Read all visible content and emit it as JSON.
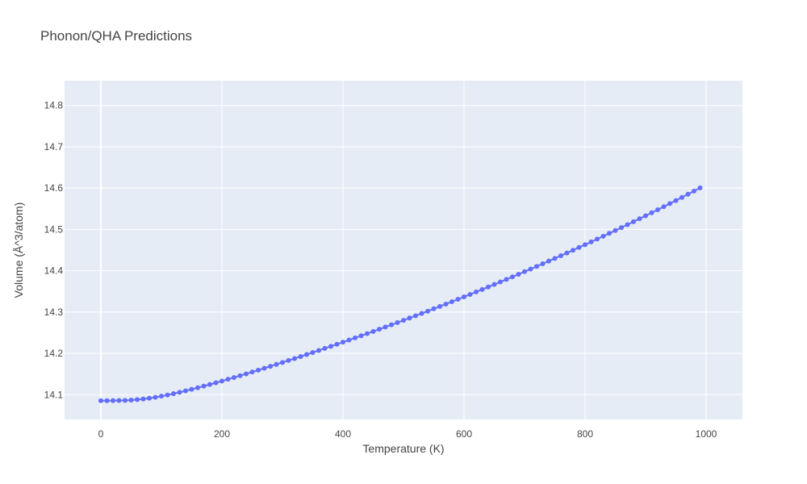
{
  "chart_data": {
    "type": "line",
    "title": "Phonon/QHA Predictions",
    "xlabel": "Temperature (K)",
    "ylabel": "Volume (Å^3/atom)",
    "xlim": [
      -60,
      1060
    ],
    "ylim": [
      14.04,
      14.86
    ],
    "x_ticks": [
      0,
      200,
      400,
      600,
      800,
      1000
    ],
    "y_ticks": [
      14.1,
      14.2,
      14.3,
      14.4,
      14.5,
      14.6,
      14.7,
      14.8
    ],
    "grid": true,
    "legend": "none",
    "colors": {
      "series": "#636efa",
      "plot_bg": "#e5ecf6",
      "grid": "#ffffff",
      "text": "#444444"
    },
    "series": [
      {
        "x": [
          0,
          10,
          20,
          30,
          40,
          50,
          60,
          70,
          80,
          90,
          100,
          110,
          120,
          130,
          140,
          150,
          160,
          170,
          180,
          190,
          200,
          210,
          220,
          230,
          240,
          250,
          260,
          270,
          280,
          290,
          300,
          310,
          320,
          330,
          340,
          350,
          360,
          370,
          380,
          390,
          400,
          410,
          420,
          430,
          440,
          450,
          460,
          470,
          480,
          490,
          500,
          510,
          520,
          530,
          540,
          550,
          560,
          570,
          580,
          590,
          600,
          610,
          620,
          630,
          640,
          650,
          660,
          670,
          680,
          690,
          700,
          710,
          720,
          730,
          740,
          750,
          760,
          770,
          780,
          790,
          800,
          810,
          820,
          830,
          840,
          850,
          860,
          870,
          880,
          890,
          900,
          910,
          920,
          930,
          940,
          950,
          960,
          970,
          980,
          990
        ],
        "y": [
          14.0855,
          14.0855,
          14.0856,
          14.0858,
          14.0862,
          14.0869,
          14.088,
          14.0895,
          14.0914,
          14.0937,
          14.0963,
          14.0992,
          14.1024,
          14.1057,
          14.1093,
          14.113,
          14.1168,
          14.1207,
          14.1247,
          14.1288,
          14.133,
          14.1373,
          14.1416,
          14.146,
          14.1504,
          14.1549,
          14.1594,
          14.164,
          14.1686,
          14.1733,
          14.178,
          14.1827,
          14.1875,
          14.1923,
          14.1972,
          14.2021,
          14.207,
          14.212,
          14.217,
          14.222,
          14.2271,
          14.2322,
          14.2374,
          14.2426,
          14.2478,
          14.2531,
          14.2584,
          14.2637,
          14.2691,
          14.2745,
          14.28,
          14.2855,
          14.291,
          14.2966,
          14.3022,
          14.3079,
          14.3136,
          14.3193,
          14.3251,
          14.3309,
          14.3368,
          14.3427,
          14.3486,
          14.3546,
          14.3606,
          14.3667,
          14.3728,
          14.379,
          14.3852,
          14.3914,
          14.3977,
          14.404,
          14.4104,
          14.4168,
          14.4233,
          14.4298,
          14.4364,
          14.443,
          14.4496,
          14.4563,
          14.463,
          14.4698,
          14.4766,
          14.4835,
          14.4904,
          14.4974,
          14.5044,
          14.5115,
          14.5186,
          14.5258,
          14.533,
          14.5403,
          14.5476,
          14.555,
          14.5624,
          14.5699,
          14.5775,
          14.5851,
          14.5927,
          14.6005
        ]
      }
    ]
  }
}
